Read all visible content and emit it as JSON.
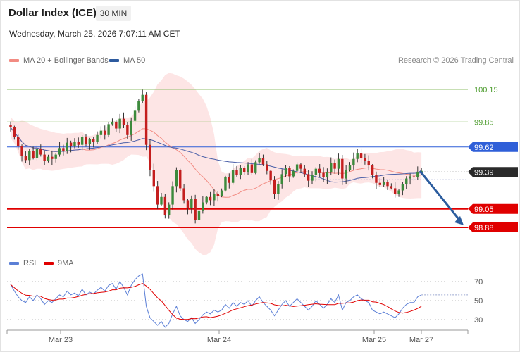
{
  "header": {
    "title": "Dollar Index (ICE)",
    "timeframe": "30 MIN",
    "datetime": "Wednesday, March 25, 2026 7:07:11 AM CET"
  },
  "legend": {
    "main": [
      {
        "label": "MA 20 + Bollinger Bands",
        "color": "#f28b82"
      },
      {
        "label": "MA 50",
        "color": "#2d5a9e"
      }
    ],
    "rsi": [
      {
        "label": "RSI",
        "color": "#5b7fd6"
      },
      {
        "label": "9MA",
        "color": "#e00000"
      }
    ]
  },
  "credit": "Research © 2026 Trading Central",
  "colors": {
    "up": "#3c8a3c",
    "down": "#c41e1e",
    "resistance": "#8fbf6a",
    "support": "#e00000",
    "pivot": "#2f5fd8",
    "band": "#fde1e1",
    "ma20": "#f28b82",
    "ma50": "#4a5fa8",
    "arrow": "#2b5c9e"
  },
  "chart_data": [
    {
      "type": "candlestick",
      "ylim": [
        98.8,
        100.2
      ],
      "x_ticks": [
        "Mar 23",
        "Mar 24",
        "Mar 25",
        "Mar 27"
      ],
      "levels": [
        {
          "value": 100.15,
          "label": "100.15",
          "kind": "resistance"
        },
        {
          "value": 99.85,
          "label": "99.85",
          "kind": "resistance"
        },
        {
          "value": 99.62,
          "label": "99.62",
          "kind": "pivot"
        },
        {
          "value": 99.05,
          "label": "99.05",
          "kind": "support"
        },
        {
          "value": 98.88,
          "label": "98.88",
          "kind": "support"
        }
      ],
      "last_price": {
        "value": 99.39,
        "label": "99.39"
      },
      "projection": {
        "from": 99.4,
        "to": 98.9
      },
      "series": [
        {
          "name": "MA 20 + Bollinger Bands"
        },
        {
          "name": "MA 50"
        }
      ],
      "close": [
        99.8,
        99.71,
        99.63,
        99.54,
        99.5,
        99.58,
        99.52,
        99.6,
        99.55,
        99.49,
        99.53,
        99.51,
        99.55,
        99.61,
        99.58,
        99.66,
        99.63,
        99.67,
        99.64,
        99.71,
        99.65,
        99.69,
        99.67,
        99.73,
        99.77,
        99.73,
        99.83,
        99.85,
        99.79,
        99.88,
        99.82,
        99.73,
        99.86,
        99.96,
        100.04,
        100.1,
        99.64,
        99.41,
        99.26,
        99.09,
        99.16,
        98.99,
        99.09,
        99.26,
        99.41,
        99.24,
        99.13,
        99.06,
        99.14,
        98.95,
        99.03,
        99.11,
        99.16,
        99.13,
        99.19,
        99.17,
        99.22,
        99.34,
        99.29,
        99.41,
        99.36,
        99.43,
        99.39,
        99.46,
        99.38,
        99.48,
        99.52,
        99.46,
        99.4,
        99.32,
        99.19,
        99.28,
        99.37,
        99.43,
        99.35,
        99.4,
        99.46,
        99.42,
        99.37,
        99.31,
        99.36,
        99.42,
        99.38,
        99.34,
        99.39,
        99.47,
        99.42,
        99.51,
        99.33,
        99.41,
        99.45,
        99.51,
        99.56,
        99.52,
        99.49,
        99.45,
        99.36,
        99.29,
        99.27,
        99.3,
        99.26,
        99.24,
        99.19,
        99.22,
        99.28,
        99.33,
        99.35,
        99.34,
        99.39,
        99.4
      ],
      "rsi": {
        "ylim": [
          22,
          78
        ],
        "ticks": [
          70,
          50,
          30
        ],
        "values": [
          67,
          60,
          54,
          50,
          48,
          54,
          50,
          56,
          52,
          46,
          50,
          48,
          52,
          56,
          54,
          60,
          56,
          58,
          55,
          62,
          56,
          59,
          57,
          61,
          64,
          60,
          66,
          68,
          62,
          70,
          64,
          56,
          66,
          72,
          76,
          78,
          44,
          32,
          28,
          24,
          28,
          22,
          26,
          36,
          44,
          34,
          30,
          28,
          32,
          26,
          30,
          35,
          38,
          36,
          40,
          38,
          40,
          46,
          42,
          48,
          44,
          48,
          46,
          50,
          44,
          50,
          54,
          48,
          44,
          40,
          34,
          40,
          46,
          50,
          44,
          48,
          52,
          48,
          44,
          40,
          44,
          50,
          46,
          42,
          46,
          52,
          48,
          56,
          40,
          48,
          50,
          54,
          56,
          52,
          50,
          48,
          40,
          38,
          36,
          38,
          36,
          34,
          32,
          36,
          42,
          46,
          48,
          48,
          54,
          56
        ],
        "ma9_comment_free": true
      }
    }
  ]
}
